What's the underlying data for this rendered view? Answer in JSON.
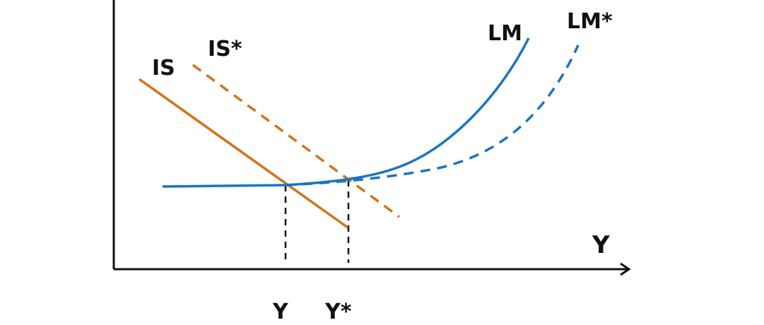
{
  "labels": {
    "is": "IS",
    "is_star": "IS*",
    "lm": "LM",
    "lm_star": "LM*",
    "x_axis": "Y",
    "y_equilibrium": "Y",
    "y_star_equilibrium": "Y*"
  },
  "colors": {
    "is_curve": "#D4721A",
    "lm_curve": "#1B74C0",
    "axes": "#111111",
    "guides": "#111111"
  },
  "styles": {
    "is_original": "solid",
    "is_shifted": "dashed",
    "lm_original": "solid",
    "lm_shifted": "dashed",
    "guide_lines": "dashed"
  }
}
